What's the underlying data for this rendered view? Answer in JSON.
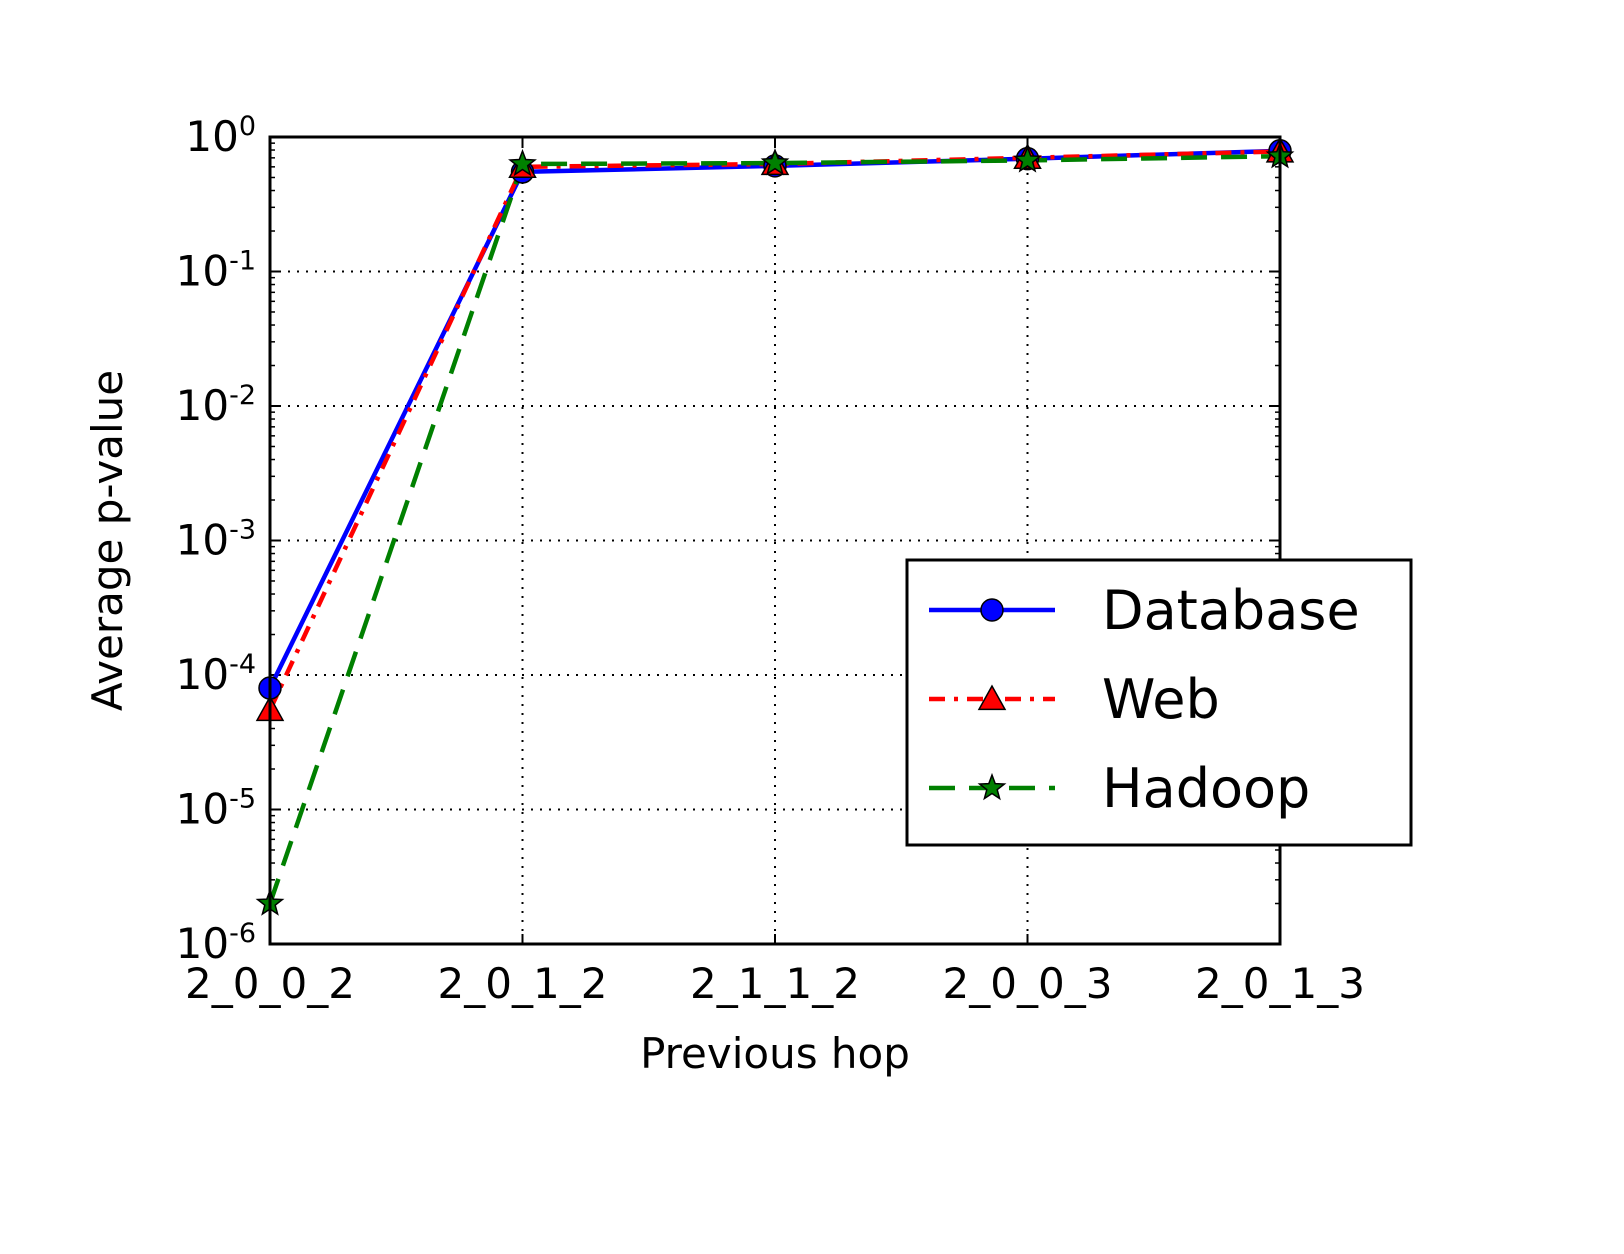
{
  "chart_data": {
    "type": "line",
    "title": "",
    "xlabel": "Previous hop",
    "ylabel": "Average p-value",
    "yscale": "log",
    "ylim": [
      1e-06,
      1
    ],
    "grid": true,
    "legend_position": "center-right",
    "categories": [
      "2_0_0_2",
      "2_0_1_2",
      "2_1_1_2",
      "2_0_0_3",
      "2_0_1_3"
    ],
    "y_ticks": [
      {
        "value": 1,
        "base": "10",
        "exp": "0"
      },
      {
        "value": 0.1,
        "base": "10",
        "exp": "-1"
      },
      {
        "value": 0.01,
        "base": "10",
        "exp": "-2"
      },
      {
        "value": 0.001,
        "base": "10",
        "exp": "-3"
      },
      {
        "value": 0.0001,
        "base": "10",
        "exp": "-4"
      },
      {
        "value": 1e-05,
        "base": "10",
        "exp": "-5"
      },
      {
        "value": 1e-06,
        "base": "10",
        "exp": "-6"
      }
    ],
    "series": [
      {
        "name": "Database",
        "color": "#0000ff",
        "marker": "circle",
        "line_style": "solid",
        "values": [
          8e-05,
          0.55,
          0.61,
          0.69,
          0.79
        ]
      },
      {
        "name": "Web",
        "color": "#ff0000",
        "marker": "triangle",
        "line_style": "dash-dot",
        "values": [
          5.5e-05,
          0.6,
          0.63,
          0.7,
          0.78
        ]
      },
      {
        "name": "Hadoop",
        "color": "#008000",
        "marker": "star",
        "line_style": "dashed",
        "values": [
          2e-06,
          0.63,
          0.64,
          0.67,
          0.72
        ]
      }
    ]
  }
}
